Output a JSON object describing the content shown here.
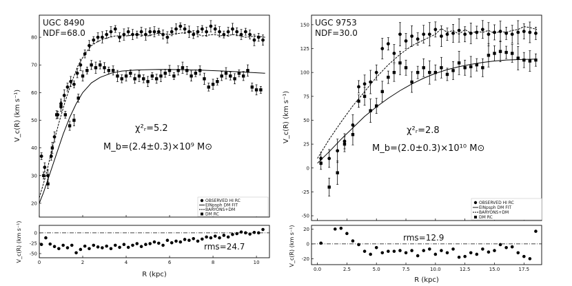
{
  "chart_data": [
    {
      "type": "scatter",
      "galaxy": "UGC 8490",
      "ndf": "NDF=68.0",
      "chi2": "χ²ᵣ=5.2",
      "mb": "M_b=(2.4±0.3)×10⁹ M⊙",
      "rms": "rms=24.7",
      "xlabel": "R (kpc)",
      "ylabel": "V_c(R) (km s⁻¹)",
      "resid_ylabel": "V_c(R) (km s⁻¹)",
      "xlim": [
        0,
        10.6
      ],
      "ylim": [
        15,
        88
      ],
      "xticks": [
        0,
        2,
        4,
        6,
        8,
        10
      ],
      "yticks": [
        20,
        30,
        40,
        50,
        60,
        70,
        80
      ],
      "rylim": [
        -60,
        18
      ],
      "ryticks": [
        -50,
        -25,
        0
      ],
      "legend": [
        "OBSERVED HI RC",
        "EINpsph DM FIT",
        "BARYONS+DM",
        "DM RC"
      ],
      "series": [
        {
          "name": "OBSERVED HI RC",
          "style": "circle",
          "x": [
            0.1,
            0.25,
            0.4,
            0.55,
            0.7,
            0.85,
            1.0,
            1.15,
            1.3,
            1.45,
            1.6,
            1.75,
            1.9,
            2.1,
            2.3,
            2.5,
            2.7,
            2.9,
            3.1,
            3.3,
            3.5,
            3.7,
            3.9,
            4.1,
            4.3,
            4.5,
            4.7,
            4.9,
            5.1,
            5.3,
            5.5,
            5.7,
            5.9,
            6.1,
            6.3,
            6.5,
            6.7,
            6.9,
            7.1,
            7.3,
            7.5,
            7.7,
            7.9,
            8.1,
            8.3,
            8.5,
            8.7,
            8.9,
            9.1,
            9.3,
            9.5,
            9.7,
            9.9,
            10.1,
            10.3
          ],
          "y": [
            37,
            33,
            30,
            37,
            44,
            52,
            56,
            59,
            62,
            64,
            63,
            67,
            70,
            74,
            77,
            79,
            80,
            80,
            81,
            82,
            83,
            80,
            81,
            82,
            81,
            81,
            82,
            81,
            82,
            82,
            82,
            81,
            80,
            82,
            83,
            84,
            83,
            82,
            81,
            82,
            83,
            82,
            84,
            83,
            82,
            81,
            82,
            83,
            82,
            81,
            82,
            81,
            79,
            80,
            79
          ]
        },
        {
          "name": "DM RC",
          "style": "square",
          "x": [
            0.2,
            0.4,
            0.6,
            0.8,
            1.0,
            1.2,
            1.4,
            1.6,
            1.8,
            2.0,
            2.2,
            2.4,
            2.6,
            2.8,
            3.0,
            3.2,
            3.4,
            3.6,
            3.8,
            4.0,
            4.2,
            4.4,
            4.6,
            4.8,
            5.0,
            5.2,
            5.4,
            5.6,
            5.8,
            6.0,
            6.2,
            6.4,
            6.6,
            6.8,
            7.0,
            7.2,
            7.4,
            7.6,
            7.8,
            8.0,
            8.2,
            8.4,
            8.6,
            8.8,
            9.0,
            9.2,
            9.4,
            9.6,
            9.8,
            10.0,
            10.2
          ],
          "y": [
            30,
            27,
            40,
            52,
            55,
            52,
            48,
            50,
            58,
            66,
            68,
            70,
            69,
            70,
            69,
            68,
            68,
            66,
            65,
            66,
            67,
            65,
            66,
            65,
            64,
            66,
            65,
            66,
            67,
            68,
            66,
            68,
            69,
            68,
            66,
            67,
            68,
            65,
            62,
            63,
            64,
            66,
            67,
            66,
            65,
            67,
            66,
            68,
            62,
            61,
            61
          ]
        }
      ],
      "fit_curve": {
        "x": [
          0,
          0.2,
          0.5,
          0.8,
          1.1,
          1.4,
          1.7,
          2.0,
          2.4,
          2.8,
          3.3,
          3.8,
          4.5,
          5.5,
          6.5,
          7.5,
          8.5,
          9.5,
          10.4
        ],
        "y": [
          20,
          24,
          31,
          38,
          45,
          51,
          56,
          60,
          63.5,
          65.5,
          67,
          67.8,
          68.2,
          68.4,
          68.3,
          68.1,
          67.8,
          67.4,
          67
        ]
      },
      "baryon_curve": {
        "x": [
          0,
          0.3,
          0.6,
          0.9,
          1.2,
          1.5,
          1.8,
          2.1,
          2.4,
          2.7,
          3.0,
          3.5,
          4.0,
          4.5,
          5.0,
          5.5,
          6.0,
          6.5,
          7.0,
          7.5,
          8.0,
          8.5,
          9.0,
          9.5,
          10.0,
          10.4
        ],
        "y": [
          22,
          30,
          40,
          49,
          57,
          64,
          70,
          74,
          77,
          78.5,
          79.5,
          80.5,
          80.5,
          81,
          80.5,
          81.5,
          81,
          81.5,
          82,
          80.5,
          81,
          80.5,
          81,
          80,
          80.5,
          80
        ]
      },
      "residuals": {
        "x": [
          0.1,
          0.3,
          0.5,
          0.7,
          0.9,
          1.1,
          1.3,
          1.5,
          1.7,
          1.9,
          2.1,
          2.3,
          2.5,
          2.7,
          2.9,
          3.1,
          3.3,
          3.5,
          3.7,
          3.9,
          4.1,
          4.3,
          4.5,
          4.7,
          4.9,
          5.1,
          5.3,
          5.5,
          5.7,
          5.9,
          6.1,
          6.3,
          6.5,
          6.7,
          6.9,
          7.1,
          7.3,
          7.5,
          7.7,
          7.9,
          8.1,
          8.3,
          8.5,
          8.7,
          8.9,
          9.1,
          9.3,
          9.5,
          9.7,
          9.9,
          10.1,
          10.3
        ],
        "y": [
          -28,
          -12,
          -27,
          -33,
          -38,
          -30,
          -36,
          -30,
          -48,
          -40,
          -32,
          -38,
          -30,
          -34,
          -36,
          -32,
          -38,
          -30,
          -35,
          -28,
          -35,
          -30,
          -26,
          -33,
          -28,
          -26,
          -22,
          -25,
          -30,
          -18,
          -24,
          -20,
          -22,
          -16,
          -18,
          -14,
          -20,
          -15,
          -10,
          -12,
          -8,
          -12,
          -6,
          -10,
          -4,
          -2,
          2,
          0,
          -3,
          1,
          0,
          8
        ]
      }
    },
    {
      "type": "scatter",
      "galaxy": "UGC 9753",
      "ndf": "NDF=30.0",
      "chi2": "χ²ᵣ=2.8",
      "mb": "M_b=(2.0±0.3)×10¹⁰ M⊙",
      "rms": "rms=12.9",
      "xlabel": "R (kpc)",
      "ylabel": "V_c(R) (km s⁻¹)",
      "resid_ylabel": "V_c(R) (km s⁻¹)",
      "xlim": [
        -0.5,
        19
      ],
      "ylim": [
        -55,
        160
      ],
      "xticks": [
        0.0,
        2.5,
        5.0,
        7.5,
        10.0,
        12.5,
        15.0,
        17.5
      ],
      "yticks": [
        -50,
        -25,
        0,
        25,
        50,
        75,
        100,
        125,
        150
      ],
      "rylim": [
        -28,
        25
      ],
      "ryticks": [
        -20,
        0,
        20
      ],
      "legend": [
        "OBSERVED HI RC",
        "EINpsph DM FIT",
        "BARYONS+DM",
        "DM RC"
      ],
      "series": [
        {
          "name": "OBSERVED HI RC",
          "style": "circle",
          "x": [
            0.3,
            1.0,
            1.7,
            2.3,
            3.0,
            3.5,
            4.0,
            4.5,
            5.0,
            5.5,
            6.0,
            6.5,
            7.0,
            7.5,
            8.0,
            8.5,
            9.0,
            9.5,
            10.0,
            10.5,
            11.0,
            11.5,
            12.0,
            12.5,
            13.0,
            13.5,
            14.0,
            14.5,
            15.0,
            15.5,
            16.0,
            16.5,
            17.0,
            17.5,
            18.0,
            18.5
          ],
          "y": [
            10,
            10,
            18,
            28,
            45,
            85,
            88,
            90,
            100,
            125,
            130,
            120,
            140,
            133,
            138,
            135,
            140,
            140,
            145,
            138,
            140,
            141,
            144,
            140,
            141,
            142,
            145,
            140,
            142,
            143,
            141,
            140,
            142,
            143,
            142,
            141
          ]
        },
        {
          "name": "DM RC",
          "style": "square",
          "x": [
            0.3,
            1.0,
            1.7,
            2.3,
            3.0,
            3.5,
            4.0,
            4.5,
            5.0,
            5.5,
            6.0,
            6.5,
            7.0,
            7.5,
            8.0,
            8.5,
            9.0,
            9.5,
            10.0,
            10.5,
            11.0,
            11.5,
            12.0,
            12.5,
            13.0,
            13.5,
            14.0,
            14.5,
            15.0,
            15.5,
            16.0,
            16.5,
            17.0,
            17.5,
            18.0,
            18.5
          ],
          "y": [
            5,
            -20,
            -5,
            25,
            35,
            70,
            75,
            60,
            65,
            80,
            95,
            100,
            110,
            105,
            90,
            100,
            105,
            100,
            100,
            105,
            98,
            102,
            110,
            105,
            106,
            108,
            105,
            118,
            120,
            122,
            121,
            120,
            115,
            113,
            112,
            113
          ]
        }
      ],
      "fit_curve": {
        "x": [
          0,
          1,
          2,
          3,
          4,
          5,
          6,
          7,
          8,
          9,
          10,
          11,
          12,
          13,
          14,
          15,
          16,
          17,
          18,
          18.6
        ],
        "y": [
          5,
          17,
          30,
          42,
          54,
          64,
          73,
          81,
          88,
          94,
          99,
          103,
          106,
          108.5,
          110.5,
          112,
          113,
          113.5,
          113.8,
          114
        ]
      },
      "baryon_curve": {
        "x": [
          0,
          1,
          2,
          3,
          4,
          5,
          6,
          7,
          8,
          9,
          10,
          10.5,
          11,
          11.5,
          12,
          12.5,
          13,
          13.5,
          14,
          14.5,
          15,
          15.5,
          16,
          16.5,
          17,
          17.5,
          18,
          18.6
        ],
        "y": [
          10,
          30,
          48,
          65,
          80,
          95,
          108,
          119,
          128,
          134,
          140,
          146,
          142,
          144,
          140,
          145,
          141,
          143,
          142,
          144,
          141,
          143,
          142,
          144,
          145,
          148,
          147,
          145
        ]
      },
      "residuals": {
        "x": [
          0.3,
          1.5,
          2.0,
          2.5,
          3.0,
          3.5,
          4.0,
          4.5,
          5.0,
          5.5,
          6.0,
          6.5,
          7.0,
          7.5,
          8.0,
          8.5,
          9.0,
          9.5,
          10.0,
          10.5,
          11.0,
          11.5,
          12.0,
          12.5,
          13.0,
          13.5,
          14.0,
          14.5,
          15.0,
          15.5,
          16.0,
          16.5,
          17.0,
          17.5,
          18.0,
          18.5
        ],
        "y": [
          1,
          20,
          21,
          14,
          4,
          -1,
          -10,
          -14,
          -5,
          -12,
          -10,
          -10,
          -9,
          -12,
          -9,
          -16,
          -9,
          -7,
          -14,
          -9,
          -12,
          -7,
          -18,
          -17,
          -12,
          -14,
          -7,
          -11,
          -9,
          -1,
          -5,
          -4,
          -12,
          -17,
          -20,
          17
        ]
      }
    }
  ]
}
